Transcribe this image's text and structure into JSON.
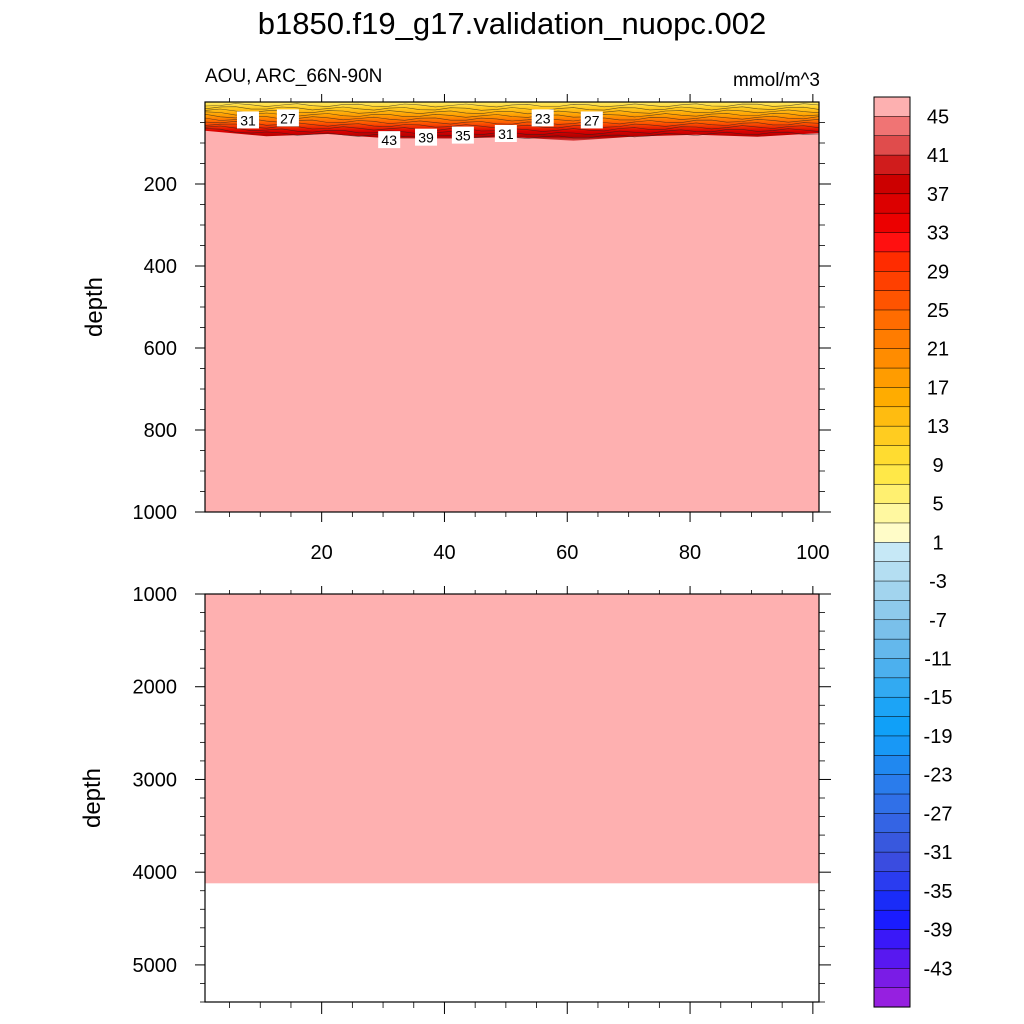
{
  "chart_data": [
    {
      "type": "heatmap",
      "title": "b1850.f19_g17.validation_nuopc.002",
      "subtitle_left": "AOU, ARC_66N-90N",
      "subtitle_right": "mmol/m^3",
      "ylabel": "depth",
      "xlim": [
        1,
        101
      ],
      "ylim": [
        1000,
        0
      ],
      "y_reversed": true,
      "xticks": [
        20,
        40,
        60,
        80,
        100
      ],
      "yticks": [
        200,
        400,
        600,
        800,
        1000
      ],
      "surface_layer_bottom_depth": [
        70,
        80,
        83,
        86,
        88,
        90,
        90,
        86,
        82,
        80,
        80
      ],
      "field_value_below_surface": ">47",
      "contour_labels": [
        {
          "text": "31",
          "x": 8,
          "depth": 45
        },
        {
          "text": "27",
          "x": 14.5,
          "depth": 40
        },
        {
          "text": "43",
          "x": 31,
          "depth": 93
        },
        {
          "text": "39",
          "x": 37,
          "depth": 87
        },
        {
          "text": "35",
          "x": 43,
          "depth": 82
        },
        {
          "text": "31",
          "x": 50,
          "depth": 78
        },
        {
          "text": "23",
          "x": 56,
          "depth": 40
        },
        {
          "text": "27",
          "x": 64,
          "depth": 45
        }
      ]
    },
    {
      "type": "heatmap",
      "ylabel": "depth",
      "xlim": [
        1,
        101
      ],
      "ylim": [
        5400,
        1000
      ],
      "y_reversed": true,
      "yticks": [
        1000,
        2000,
        3000,
        4000,
        5000
      ],
      "data_bottom_depth": 4120,
      "field_value": ">47"
    }
  ],
  "colorbar": {
    "labels": [
      "45",
      "41",
      "37",
      "33",
      "29",
      "25",
      "21",
      "17",
      "13",
      "9",
      "5",
      "1",
      "-3",
      "-7",
      "-11",
      "-15",
      "-19",
      "-23",
      "-27",
      "-31",
      "-35",
      "-39",
      "-43"
    ],
    "colors": [
      "#fdb0b0",
      "#f07474",
      "#e04c4c",
      "#d01c1c",
      "#cc0000",
      "#dc0000",
      "#ec0000",
      "#ff1010",
      "#ff2c00",
      "#ff4000",
      "#ff5400",
      "#ff6c00",
      "#ff7c00",
      "#ff8c00",
      "#ff9c00",
      "#ffac00",
      "#ffbc10",
      "#ffcc20",
      "#ffdc30",
      "#ffe848",
      "#fff070",
      "#fff8a0",
      "#fffcc8",
      "#c6e8f6",
      "#b4def2",
      "#a2d4ee",
      "#8ecaec",
      "#7ac0ea",
      "#64b8ec",
      "#4cb0ee",
      "#32aaf2",
      "#1ca4f6",
      "#10a0f8",
      "#1898f6",
      "#2088f0",
      "#2a7cec",
      "#3070e8",
      "#3464e4",
      "#3858de",
      "#3a4ce0",
      "#2a3cf0",
      "#1a2cf8",
      "#1a1cff",
      "#3a18f8",
      "#5818f0",
      "#7a1ce6",
      "#9620e0"
    ],
    "accent_light_pink": "#feb0b0"
  }
}
